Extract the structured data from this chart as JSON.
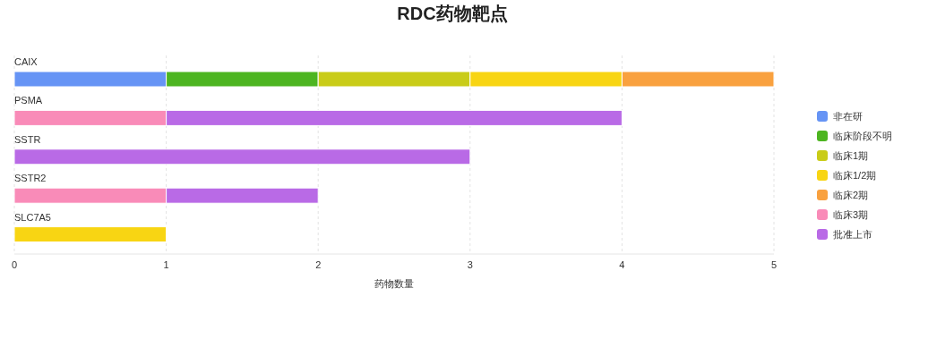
{
  "chart_data": {
    "type": "bar",
    "orientation": "horizontal",
    "stacked": true,
    "title": "RDC药物靶点",
    "xlabel": "药物数量",
    "categories": [
      "CAIX",
      "PSMA",
      "SSTR",
      "SSTR2",
      "SLC7A5"
    ],
    "series": [
      {
        "name": "非在研",
        "color": "#6694f5",
        "values": [
          1,
          null,
          null,
          null,
          null
        ]
      },
      {
        "name": "临床阶段不明",
        "color": "#4db521",
        "values": [
          1,
          null,
          null,
          null,
          null
        ]
      },
      {
        "name": "临床1期",
        "color": "#c9cc18",
        "values": [
          1,
          null,
          null,
          null,
          null
        ]
      },
      {
        "name": "临床1/2期",
        "color": "#f8d513",
        "values": [
          1,
          null,
          null,
          null,
          1
        ]
      },
      {
        "name": "临床2期",
        "color": "#f9a13f",
        "values": [
          1,
          null,
          null,
          null,
          null
        ]
      },
      {
        "name": "临床3期",
        "color": "#f98bb8",
        "values": [
          null,
          1,
          null,
          1,
          null
        ]
      },
      {
        "name": "批准上市",
        "color": "#b96ae6",
        "values": [
          null,
          3,
          3,
          1,
          null
        ]
      }
    ],
    "xlim": [
      0,
      5
    ],
    "xticks": [
      0,
      1,
      2,
      3,
      4,
      5
    ],
    "grid": "x",
    "legend": "right"
  }
}
